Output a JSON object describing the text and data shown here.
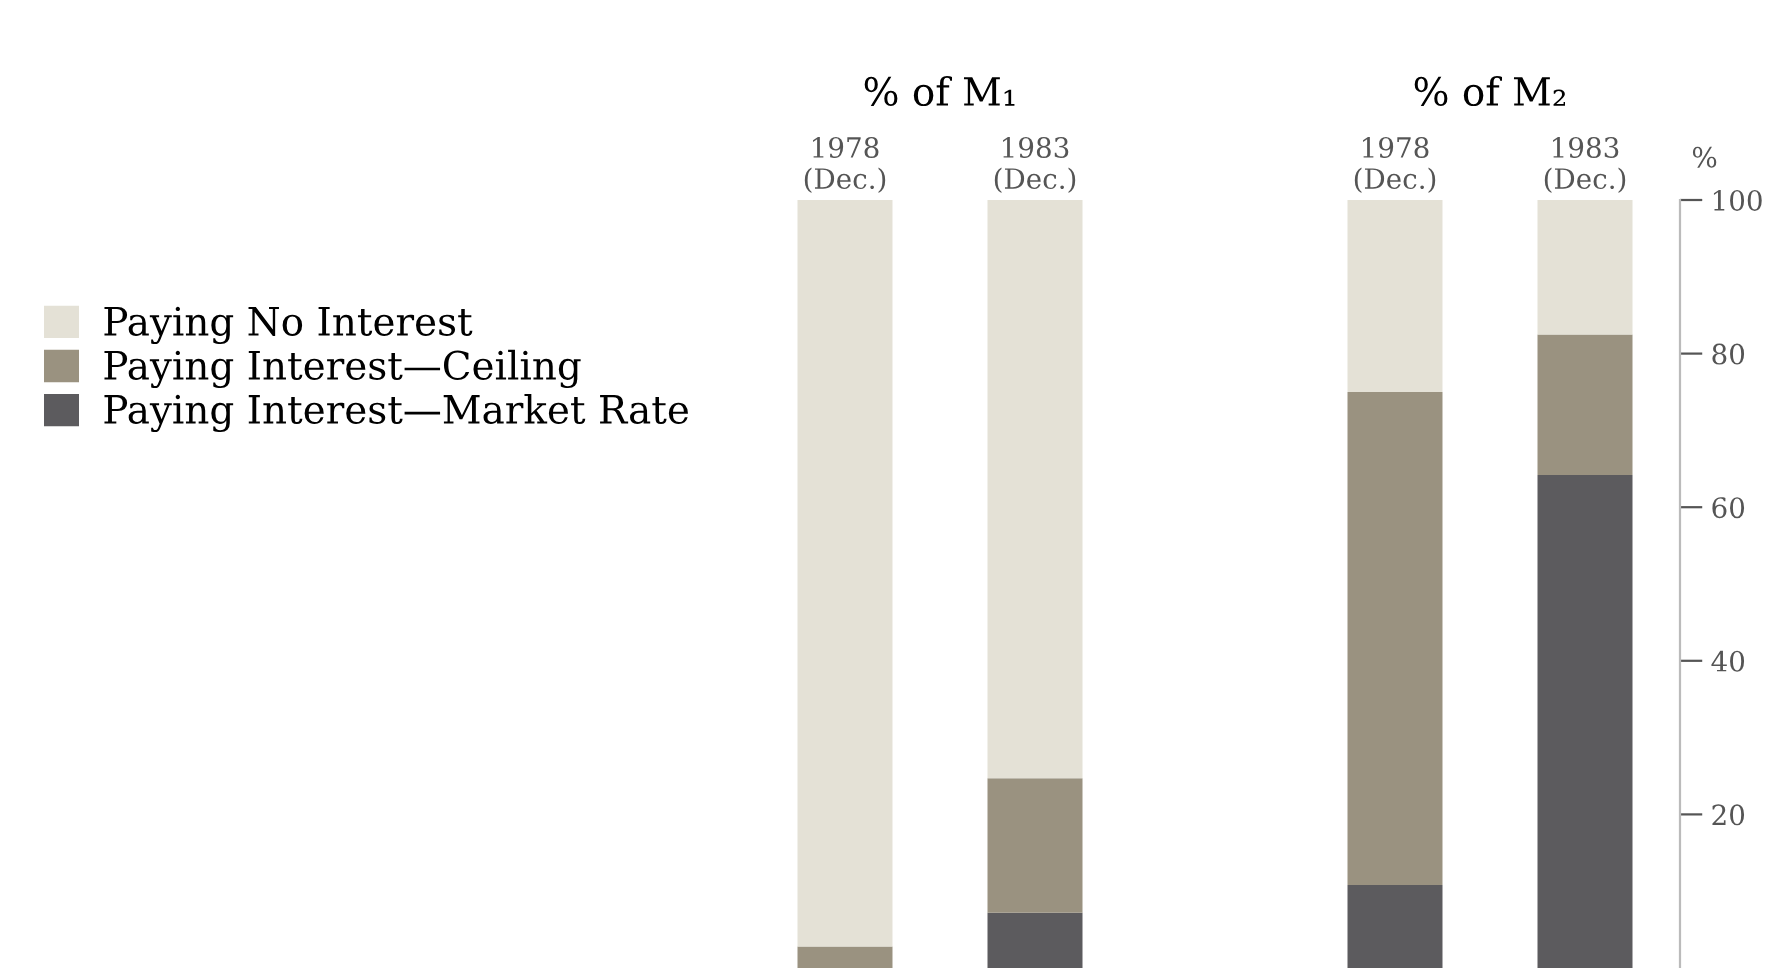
{
  "chart_data": [
    {
      "type": "bar",
      "title": "% of M₁",
      "categories": [
        "1978\n(Dec.)",
        "1983\n(Dec.)"
      ],
      "stacked": true,
      "ylim": [
        0,
        100
      ],
      "yticks": [
        20,
        40,
        60,
        80,
        100
      ],
      "tick_labels": "x",
      "legend": "left",
      "grid": false,
      "series": [
        {
          "name": "Paying Interest—Market Rate",
          "color": "#5c5b5e",
          "values": [
            0,
            7.2
          ]
        },
        {
          "name": "Paying Interest—Ceiling",
          "color": "#9a9280",
          "values": [
            2.8,
            17.5
          ]
        },
        {
          "name": "Paying No Interest",
          "color": "#e4e1d6",
          "values": [
            97.2,
            75.3
          ]
        }
      ]
    },
    {
      "type": "bar",
      "title": "% of M₂",
      "categories": [
        "1978\n(Dec.)",
        "1983\n(Dec.)"
      ],
      "stacked": true,
      "ylim": [
        0,
        100
      ],
      "yticks": [
        20,
        40,
        60,
        80,
        100
      ],
      "ylabel": "%",
      "legend": false,
      "grid": false,
      "series": [
        {
          "color": "#5c5b5e",
          "values": [
            10.8,
            64.2
          ]
        },
        {
          "color": "#9a9280",
          "values": [
            64.2,
            18.3
          ]
        },
        {
          "color": "#e4e1d6",
          "values": [
            25,
            17.5
          ]
        }
      ]
    }
  ]
}
